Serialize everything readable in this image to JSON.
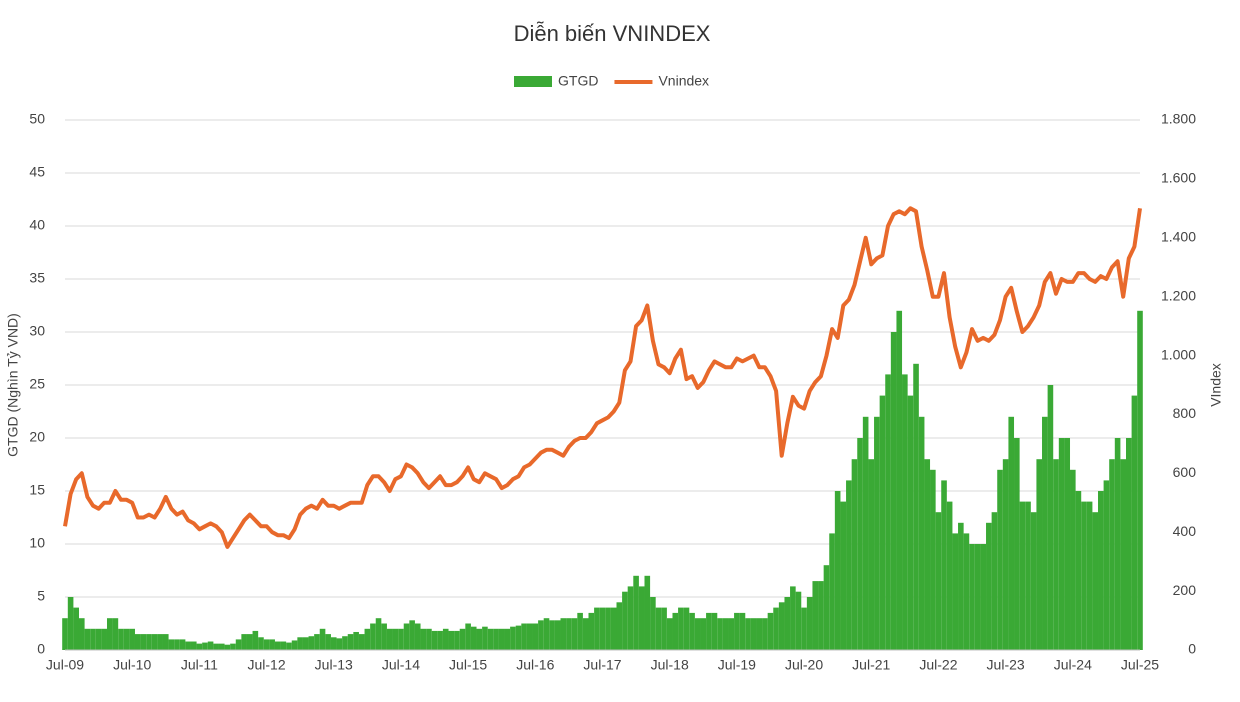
{
  "chart_data": {
    "type": "bar",
    "title": "Diễn biến VNINDEX",
    "y_label": "GTGD (Nghìn Tỷ VND)",
    "y2_label": "VIndex",
    "categories": [
      "Jul-09",
      null,
      null,
      null,
      null,
      null,
      null,
      null,
      null,
      null,
      null,
      null,
      "Jul-10",
      null,
      null,
      null,
      null,
      null,
      null,
      null,
      null,
      null,
      null,
      null,
      "Jul-11",
      null,
      null,
      null,
      null,
      null,
      null,
      null,
      null,
      null,
      null,
      null,
      "Jul-12",
      null,
      null,
      null,
      null,
      null,
      null,
      null,
      null,
      null,
      null,
      null,
      "Jul-13",
      null,
      null,
      null,
      null,
      null,
      null,
      null,
      null,
      null,
      null,
      null,
      "Jul-14",
      null,
      null,
      null,
      null,
      null,
      null,
      null,
      null,
      null,
      null,
      null,
      "Jul-15",
      null,
      null,
      null,
      null,
      null,
      null,
      null,
      null,
      null,
      null,
      null,
      "Jul-16",
      null,
      null,
      null,
      null,
      null,
      null,
      null,
      null,
      null,
      null,
      null,
      "Jul-17",
      null,
      null,
      null,
      null,
      null,
      null,
      null,
      null,
      null,
      null,
      null,
      "Jul-18",
      null,
      null,
      null,
      null,
      null,
      null,
      null,
      null,
      null,
      null,
      null,
      "Jul-19",
      null,
      null,
      null,
      null,
      null,
      null,
      null,
      null,
      null,
      null,
      null,
      "Jul-20",
      null,
      null,
      null,
      null,
      null,
      null,
      null,
      null,
      null,
      null,
      null,
      "Jul-21",
      null,
      null,
      null,
      null,
      null,
      null,
      null,
      null,
      null,
      null,
      null,
      "Jul-22",
      null,
      null,
      null,
      null,
      null,
      null,
      null,
      null,
      null,
      null,
      null,
      "Jul-23",
      null,
      null,
      null,
      null,
      null,
      null,
      null,
      null,
      null,
      null,
      null,
      "Jul-24",
      null,
      null,
      null,
      null,
      null,
      null,
      null,
      null,
      null,
      null,
      null,
      "Jul-25"
    ],
    "series": [
      {
        "name": "GTGD",
        "type": "bar",
        "color": "#3aa935",
        "values": [
          3,
          5,
          4,
          3,
          2,
          2,
          2,
          2,
          3,
          3,
          2,
          2,
          2,
          1.5,
          1.5,
          1.5,
          1.5,
          1.5,
          1.5,
          1,
          1,
          1,
          0.8,
          0.8,
          0.6,
          0.7,
          0.8,
          0.6,
          0.6,
          0.5,
          0.6,
          1,
          1.5,
          1.5,
          1.8,
          1.2,
          1,
          1,
          0.8,
          0.8,
          0.7,
          0.9,
          1.2,
          1.2,
          1.3,
          1.5,
          2,
          1.5,
          1.2,
          1.1,
          1.3,
          1.5,
          1.7,
          1.5,
          2,
          2.5,
          3,
          2.5,
          2,
          2,
          2,
          2.5,
          2.8,
          2.5,
          2,
          2,
          1.8,
          1.8,
          2,
          1.8,
          1.8,
          2,
          2.5,
          2.2,
          2,
          2.2,
          2,
          2,
          2,
          2,
          2.2,
          2.3,
          2.5,
          2.5,
          2.5,
          2.8,
          3,
          2.8,
          2.8,
          3,
          3,
          3,
          3.5,
          3,
          3.5,
          4,
          4,
          4,
          4,
          4.5,
          5.5,
          6,
          7,
          6,
          7,
          5,
          4,
          4,
          3,
          3.5,
          4,
          4,
          3.5,
          3,
          3,
          3.5,
          3.5,
          3,
          3,
          3,
          3.5,
          3.5,
          3,
          3,
          3,
          3,
          3.5,
          4,
          4.5,
          5,
          6,
          5.5,
          4,
          5,
          6.5,
          6.5,
          8,
          11,
          15,
          14,
          16,
          18,
          20,
          22,
          18,
          22,
          24,
          26,
          30,
          32,
          26,
          24,
          27,
          22,
          18,
          17,
          13,
          16,
          14,
          11,
          12,
          11,
          10,
          10,
          10,
          12,
          13,
          17,
          18,
          22,
          20,
          14,
          14,
          13,
          18,
          22,
          25,
          18,
          20,
          20,
          17,
          15,
          14,
          14,
          13,
          15,
          16,
          18,
          20,
          18,
          20,
          24,
          32
        ]
      },
      {
        "name": "Vnindex",
        "type": "line",
        "axis": "y2",
        "color": "#e8692b",
        "values": [
          420,
          530,
          580,
          600,
          520,
          490,
          480,
          500,
          500,
          540,
          510,
          510,
          500,
          450,
          450,
          460,
          450,
          480,
          520,
          480,
          460,
          470,
          440,
          430,
          410,
          420,
          430,
          420,
          400,
          350,
          380,
          410,
          440,
          460,
          440,
          420,
          420,
          400,
          390,
          390,
          380,
          410,
          460,
          480,
          490,
          480,
          510,
          490,
          490,
          480,
          490,
          500,
          500,
          500,
          560,
          590,
          590,
          570,
          540,
          580,
          590,
          630,
          620,
          600,
          570,
          550,
          570,
          590,
          560,
          560,
          570,
          590,
          620,
          580,
          570,
          600,
          590,
          580,
          550,
          560,
          580,
          590,
          620,
          630,
          650,
          670,
          680,
          680,
          670,
          660,
          690,
          710,
          720,
          720,
          740,
          770,
          780,
          790,
          810,
          840,
          950,
          980,
          1100,
          1120,
          1170,
          1050,
          970,
          960,
          940,
          990,
          1020,
          920,
          930,
          890,
          910,
          950,
          980,
          970,
          960,
          960,
          990,
          980,
          990,
          1000,
          960,
          960,
          930,
          880,
          660,
          770,
          860,
          830,
          820,
          880,
          910,
          930,
          1000,
          1090,
          1060,
          1170,
          1190,
          1240,
          1320,
          1400,
          1310,
          1330,
          1340,
          1440,
          1480,
          1490,
          1480,
          1500,
          1490,
          1370,
          1290,
          1200,
          1200,
          1280,
          1130,
          1030,
          960,
          1010,
          1090,
          1050,
          1060,
          1050,
          1070,
          1120,
          1200,
          1230,
          1150,
          1080,
          1100,
          1130,
          1170,
          1250,
          1280,
          1210,
          1260,
          1250,
          1250,
          1280,
          1280,
          1260,
          1250,
          1270,
          1260,
          1300,
          1320,
          1200,
          1330,
          1370,
          1500
        ]
      }
    ],
    "ylim": [
      0,
      50
    ],
    "yticks": [
      0,
      5,
      10,
      15,
      20,
      25,
      30,
      35,
      40,
      45,
      50
    ],
    "y2lim": [
      0,
      1800
    ],
    "y2ticks": [
      0,
      200,
      400,
      600,
      800,
      {
        "value": 1000,
        "label": "1.000"
      },
      {
        "value": 1200,
        "label": "1.200"
      },
      {
        "value": 1400,
        "label": "1.400"
      },
      {
        "value": 1600,
        "label": "1.600"
      },
      {
        "value": 1800,
        "label": "1.800"
      }
    ],
    "grid": true,
    "legend": "top"
  }
}
